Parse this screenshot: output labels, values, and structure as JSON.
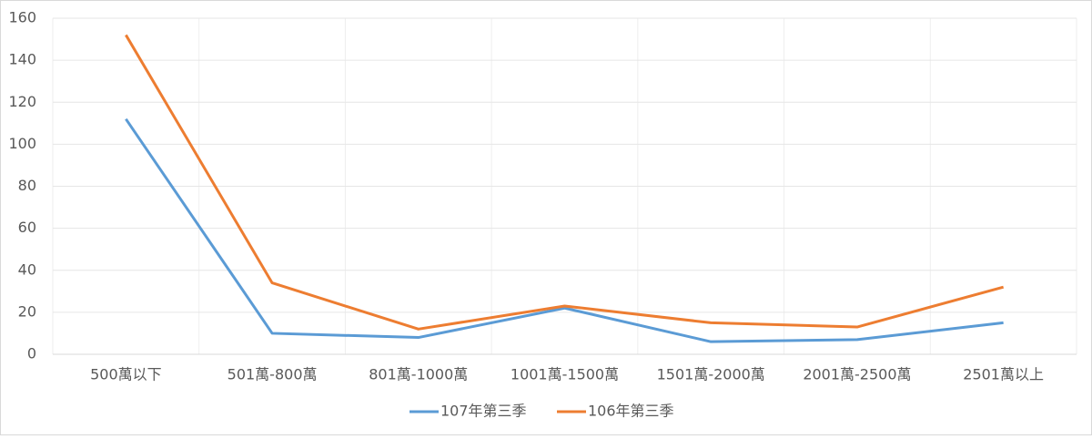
{
  "chart_data": {
    "type": "line",
    "categories": [
      "500萬以下",
      "501萬-800萬",
      "801萬-1000萬",
      "1001萬-1500萬",
      "1501萬-2000萬",
      "2001萬-2500萬",
      "2501萬以上"
    ],
    "series": [
      {
        "name": "107年第三季",
        "color": "#5b9bd5",
        "values": [
          112,
          10,
          8,
          22,
          6,
          7,
          15
        ]
      },
      {
        "name": "106年第三季",
        "color": "#ed7d31",
        "values": [
          152,
          34,
          12,
          23,
          15,
          13,
          32
        ]
      }
    ],
    "ylim": [
      0,
      160
    ],
    "yticks": [
      0,
      20,
      40,
      60,
      80,
      100,
      120,
      140,
      160
    ],
    "grid": true,
    "legend": "bottom"
  }
}
